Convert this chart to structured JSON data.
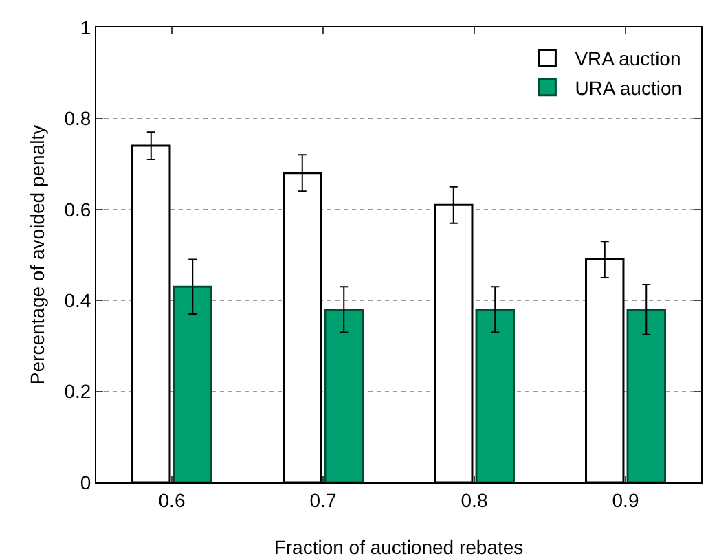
{
  "chart_data": {
    "type": "bar",
    "xlabel": "Fraction of auctioned rebates",
    "ylabel": "Percentage of avoided penalty",
    "categories": [
      "0.6",
      "0.7",
      "0.8",
      "0.9"
    ],
    "series": [
      {
        "name": "VRA auction",
        "color": "#ffffff",
        "values": [
          0.74,
          0.68,
          0.61,
          0.49
        ],
        "errors": [
          0.03,
          0.04,
          0.04,
          0.04
        ]
      },
      {
        "name": "URA auction",
        "color": "#00a070",
        "values": [
          0.43,
          0.38,
          0.38,
          0.38
        ],
        "errors": [
          [
            0.37,
            0.49
          ],
          [
            0.33,
            0.43
          ],
          [
            0.33,
            0.43
          ],
          [
            0.325,
            0.435
          ]
        ]
      }
    ],
    "ylim": [
      0,
      1
    ],
    "yticks": [
      0,
      0.2,
      0.4,
      0.6,
      0.8,
      1
    ],
    "grid": "y",
    "legend": "top right"
  }
}
